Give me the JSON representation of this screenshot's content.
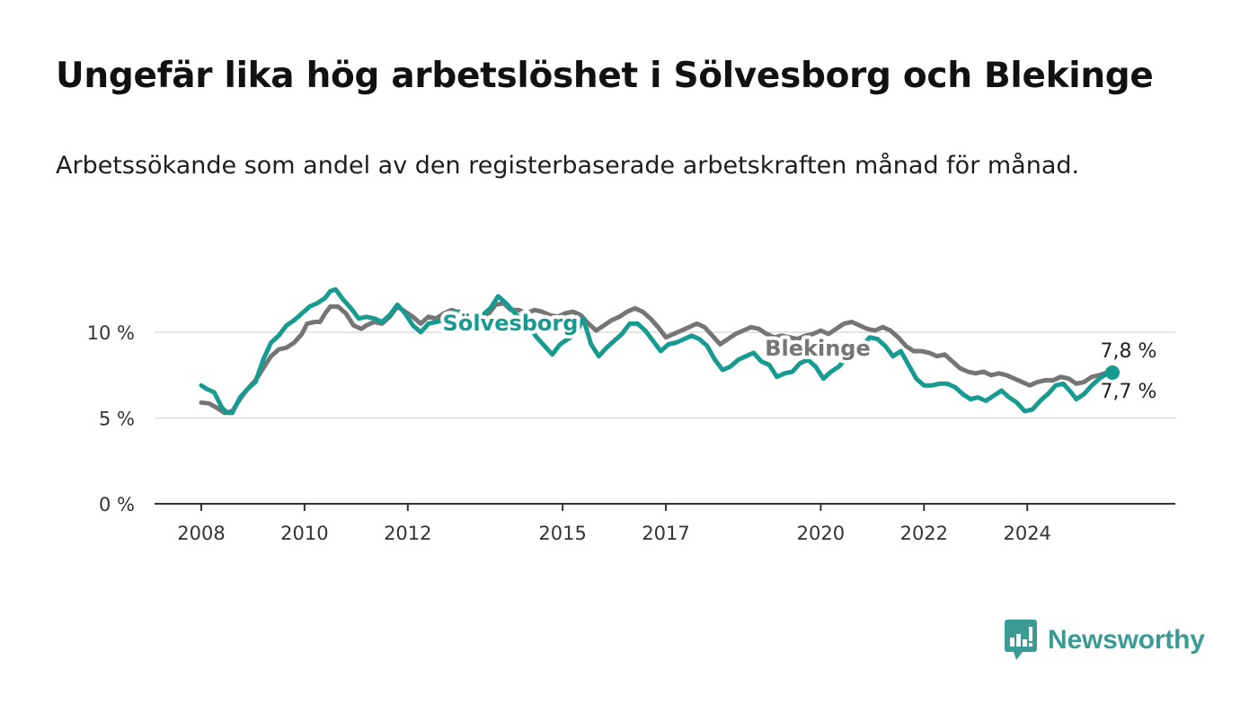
{
  "title": "Ungefär lika hög arbetslöshet i Sölvesborg och Blekinge",
  "subtitle": "Arbetssökande som andel av den registerbaserade arbetskraften månad för månad.",
  "brand": {
    "name": "Newsworthy",
    "color": "#3a9b94",
    "icon": "bar-chart-speech-bubble-icon"
  },
  "chart_data": {
    "type": "line",
    "title": "Ungefär lika hög arbetslöshet i Sölvesborg och Blekinge",
    "xlabel": "",
    "ylabel": "",
    "xlim": [
      2007.6,
      2026.3
    ],
    "ylim": [
      0,
      14
    ],
    "grid": true,
    "x_ticks": [
      {
        "value": 2008,
        "label": "2008"
      },
      {
        "value": 2010,
        "label": "2010"
      },
      {
        "value": 2012,
        "label": "2012"
      },
      {
        "value": 2015,
        "label": "2015"
      },
      {
        "value": 2017,
        "label": "2017"
      },
      {
        "value": 2020,
        "label": "2020"
      },
      {
        "value": 2022,
        "label": "2022"
      },
      {
        "value": 2024,
        "label": "2024"
      }
    ],
    "y_ticks": [
      {
        "value": 0,
        "label": "0 %"
      },
      {
        "value": 5,
        "label": "5 %"
      },
      {
        "value": 10,
        "label": "10 %"
      }
    ],
    "series": [
      {
        "name": "Blekinge",
        "color": "#757575",
        "end_label": "7,8 %",
        "points": [
          [
            2008.0,
            5.9
          ],
          [
            2008.15,
            5.85
          ],
          [
            2008.3,
            5.6
          ],
          [
            2008.45,
            5.3
          ],
          [
            2008.6,
            5.4
          ],
          [
            2008.75,
            6.1
          ],
          [
            2008.9,
            6.7
          ],
          [
            2009.05,
            7.2
          ],
          [
            2009.2,
            7.9
          ],
          [
            2009.35,
            8.6
          ],
          [
            2009.5,
            9.0
          ],
          [
            2009.65,
            9.1
          ],
          [
            2009.8,
            9.4
          ],
          [
            2009.95,
            9.9
          ],
          [
            2010.05,
            10.5
          ],
          [
            2010.2,
            10.6
          ],
          [
            2010.3,
            10.6
          ],
          [
            2010.4,
            11.1
          ],
          [
            2010.5,
            11.5
          ],
          [
            2010.65,
            11.5
          ],
          [
            2010.8,
            11.1
          ],
          [
            2010.95,
            10.4
          ],
          [
            2011.1,
            10.2
          ],
          [
            2011.2,
            10.4
          ],
          [
            2011.35,
            10.6
          ],
          [
            2011.5,
            10.5
          ],
          [
            2011.65,
            10.9
          ],
          [
            2011.8,
            11.5
          ],
          [
            2011.95,
            11.2
          ],
          [
            2012.1,
            10.9
          ],
          [
            2012.25,
            10.5
          ],
          [
            2012.4,
            10.9
          ],
          [
            2012.55,
            10.8
          ],
          [
            2012.7,
            11.1
          ],
          [
            2012.85,
            11.3
          ],
          [
            2012.95,
            11.2
          ],
          [
            2013.1,
            10.9
          ],
          [
            2013.25,
            10.8
          ],
          [
            2013.4,
            11.0
          ],
          [
            2013.55,
            11.0
          ],
          [
            2013.7,
            11.6
          ],
          [
            2013.85,
            11.7
          ],
          [
            2014.0,
            11.3
          ],
          [
            2014.15,
            11.3
          ],
          [
            2014.3,
            11.1
          ],
          [
            2014.45,
            11.3
          ],
          [
            2014.6,
            11.2
          ],
          [
            2014.75,
            11.0
          ],
          [
            2014.9,
            10.9
          ],
          [
            2015.05,
            11.1
          ],
          [
            2015.2,
            11.2
          ],
          [
            2015.35,
            11.0
          ],
          [
            2015.5,
            10.5
          ],
          [
            2015.65,
            10.1
          ],
          [
            2015.8,
            10.4
          ],
          [
            2015.95,
            10.7
          ],
          [
            2016.1,
            10.9
          ],
          [
            2016.25,
            11.2
          ],
          [
            2016.4,
            11.4
          ],
          [
            2016.55,
            11.2
          ],
          [
            2016.7,
            10.8
          ],
          [
            2016.85,
            10.3
          ],
          [
            2017.0,
            9.7
          ],
          [
            2017.15,
            9.9
          ],
          [
            2017.3,
            10.1
          ],
          [
            2017.45,
            10.3
          ],
          [
            2017.6,
            10.5
          ],
          [
            2017.75,
            10.3
          ],
          [
            2017.9,
            9.8
          ],
          [
            2018.05,
            9.3
          ],
          [
            2018.2,
            9.6
          ],
          [
            2018.35,
            9.9
          ],
          [
            2018.5,
            10.1
          ],
          [
            2018.65,
            10.3
          ],
          [
            2018.8,
            10.2
          ],
          [
            2018.95,
            9.9
          ],
          [
            2019.1,
            9.7
          ],
          [
            2019.25,
            9.8
          ],
          [
            2019.4,
            9.7
          ],
          [
            2019.55,
            9.6
          ],
          [
            2019.7,
            9.8
          ],
          [
            2019.85,
            9.9
          ],
          [
            2020.0,
            10.1
          ],
          [
            2020.15,
            9.9
          ],
          [
            2020.3,
            10.2
          ],
          [
            2020.45,
            10.5
          ],
          [
            2020.6,
            10.6
          ],
          [
            2020.75,
            10.4
          ],
          [
            2020.9,
            10.2
          ],
          [
            2021.05,
            10.1
          ],
          [
            2021.2,
            10.3
          ],
          [
            2021.35,
            10.1
          ],
          [
            2021.5,
            9.7
          ],
          [
            2021.65,
            9.2
          ],
          [
            2021.8,
            8.9
          ],
          [
            2021.95,
            8.9
          ],
          [
            2022.1,
            8.8
          ],
          [
            2022.25,
            8.6
          ],
          [
            2022.4,
            8.7
          ],
          [
            2022.55,
            8.3
          ],
          [
            2022.7,
            7.9
          ],
          [
            2022.85,
            7.7
          ],
          [
            2023.0,
            7.6
          ],
          [
            2023.15,
            7.7
          ],
          [
            2023.3,
            7.5
          ],
          [
            2023.45,
            7.6
          ],
          [
            2023.6,
            7.5
          ],
          [
            2023.75,
            7.3
          ],
          [
            2023.9,
            7.1
          ],
          [
            2024.05,
            6.9
          ],
          [
            2024.2,
            7.1
          ],
          [
            2024.35,
            7.2
          ],
          [
            2024.5,
            7.2
          ],
          [
            2024.65,
            7.4
          ],
          [
            2024.8,
            7.3
          ],
          [
            2024.95,
            7.0
          ],
          [
            2025.1,
            7.1
          ],
          [
            2025.25,
            7.4
          ],
          [
            2025.4,
            7.5
          ],
          [
            2025.5,
            7.6
          ],
          [
            2025.65,
            7.8
          ]
        ]
      },
      {
        "name": "Sölvesborg",
        "color": "#179b91",
        "end_label": "7,7 %",
        "points": [
          [
            2008.0,
            6.9
          ],
          [
            2008.1,
            6.7
          ],
          [
            2008.25,
            6.5
          ],
          [
            2008.4,
            5.6
          ],
          [
            2008.5,
            5.3
          ],
          [
            2008.6,
            5.3
          ],
          [
            2008.75,
            6.2
          ],
          [
            2008.9,
            6.7
          ],
          [
            2009.05,
            7.1
          ],
          [
            2009.2,
            8.4
          ],
          [
            2009.35,
            9.4
          ],
          [
            2009.5,
            9.8
          ],
          [
            2009.65,
            10.4
          ],
          [
            2009.8,
            10.7
          ],
          [
            2009.95,
            11.1
          ],
          [
            2010.1,
            11.5
          ],
          [
            2010.25,
            11.7
          ],
          [
            2010.4,
            12.0
          ],
          [
            2010.5,
            12.4
          ],
          [
            2010.6,
            12.5
          ],
          [
            2010.75,
            11.9
          ],
          [
            2010.9,
            11.4
          ],
          [
            2011.05,
            10.8
          ],
          [
            2011.2,
            10.9
          ],
          [
            2011.35,
            10.8
          ],
          [
            2011.5,
            10.6
          ],
          [
            2011.65,
            11.0
          ],
          [
            2011.8,
            11.6
          ],
          [
            2011.95,
            11.1
          ],
          [
            2012.1,
            10.4
          ],
          [
            2012.25,
            10.0
          ],
          [
            2012.4,
            10.5
          ],
          [
            2012.55,
            10.6
          ],
          [
            2012.7,
            10.7
          ],
          [
            2012.85,
            11.1
          ],
          [
            2013.0,
            11.2
          ],
          [
            2013.15,
            10.8
          ],
          [
            2013.3,
            10.5
          ],
          [
            2013.45,
            11.0
          ],
          [
            2013.6,
            11.4
          ],
          [
            2013.75,
            12.1
          ],
          [
            2013.9,
            11.7
          ],
          [
            2014.05,
            11.2
          ],
          [
            2014.2,
            10.7
          ],
          [
            2014.35,
            10.3
          ],
          [
            2014.5,
            9.7
          ],
          [
            2014.65,
            9.2
          ],
          [
            2014.8,
            8.7
          ],
          [
            2014.95,
            9.3
          ],
          [
            2015.1,
            9.6
          ],
          [
            2015.25,
            9.9
          ],
          [
            2015.4,
            10.8
          ],
          [
            2015.55,
            9.3
          ],
          [
            2015.7,
            8.6
          ],
          [
            2015.85,
            9.1
          ],
          [
            2016.0,
            9.5
          ],
          [
            2016.15,
            9.9
          ],
          [
            2016.3,
            10.5
          ],
          [
            2016.45,
            10.5
          ],
          [
            2016.6,
            10.1
          ],
          [
            2016.75,
            9.5
          ],
          [
            2016.9,
            8.9
          ],
          [
            2017.05,
            9.3
          ],
          [
            2017.2,
            9.4
          ],
          [
            2017.35,
            9.6
          ],
          [
            2017.5,
            9.8
          ],
          [
            2017.65,
            9.6
          ],
          [
            2017.8,
            9.2
          ],
          [
            2017.95,
            8.4
          ],
          [
            2018.1,
            7.8
          ],
          [
            2018.25,
            8.0
          ],
          [
            2018.4,
            8.4
          ],
          [
            2018.55,
            8.6
          ],
          [
            2018.7,
            8.8
          ],
          [
            2018.85,
            8.3
          ],
          [
            2019.0,
            8.1
          ],
          [
            2019.15,
            7.4
          ],
          [
            2019.3,
            7.6
          ],
          [
            2019.45,
            7.7
          ],
          [
            2019.6,
            8.2
          ],
          [
            2019.75,
            8.4
          ],
          [
            2019.9,
            8.0
          ],
          [
            2020.05,
            7.3
          ],
          [
            2020.2,
            7.7
          ],
          [
            2020.35,
            8.0
          ],
          [
            2020.5,
            8.5
          ],
          [
            2020.65,
            8.7
          ],
          [
            2020.8,
            9.2
          ],
          [
            2020.95,
            9.7
          ],
          [
            2021.1,
            9.6
          ],
          [
            2021.25,
            9.2
          ],
          [
            2021.4,
            8.6
          ],
          [
            2021.55,
            8.9
          ],
          [
            2021.7,
            8.1
          ],
          [
            2021.85,
            7.3
          ],
          [
            2022.0,
            6.9
          ],
          [
            2022.15,
            6.9
          ],
          [
            2022.3,
            7.0
          ],
          [
            2022.45,
            7.0
          ],
          [
            2022.6,
            6.8
          ],
          [
            2022.75,
            6.4
          ],
          [
            2022.9,
            6.1
          ],
          [
            2023.05,
            6.2
          ],
          [
            2023.2,
            6.0
          ],
          [
            2023.35,
            6.3
          ],
          [
            2023.5,
            6.6
          ],
          [
            2023.65,
            6.2
          ],
          [
            2023.8,
            5.9
          ],
          [
            2023.95,
            5.4
          ],
          [
            2024.1,
            5.5
          ],
          [
            2024.25,
            6.0
          ],
          [
            2024.4,
            6.4
          ],
          [
            2024.55,
            6.9
          ],
          [
            2024.7,
            7.0
          ],
          [
            2024.85,
            6.5
          ],
          [
            2024.95,
            6.1
          ],
          [
            2025.1,
            6.4
          ],
          [
            2025.25,
            6.9
          ],
          [
            2025.4,
            7.3
          ],
          [
            2025.55,
            7.6
          ],
          [
            2025.65,
            7.7
          ]
        ]
      }
    ]
  }
}
